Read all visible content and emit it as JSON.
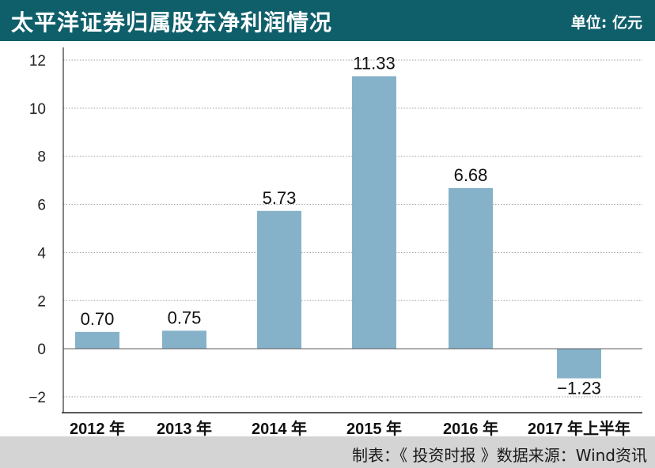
{
  "header": {
    "title": "太平洋证券归属股东净利润情况",
    "unit": "单位: 亿元"
  },
  "footer": {
    "source": "制表：《 投资时报 》数据来源：Wind资讯"
  },
  "colors": {
    "header_bg": "#0f5f6b",
    "bar": "#86b2c9",
    "footer_bg": "#d4d4d4"
  },
  "chart_data": {
    "type": "bar",
    "title": "太平洋证券归属股东净利润情况",
    "xlabel": "",
    "ylabel": "",
    "ylim": [
      -2,
      12
    ],
    "yticks": [
      -2,
      0,
      2,
      4,
      6,
      8,
      10,
      12
    ],
    "grid": true,
    "categories": [
      "2012 年",
      "2013 年",
      "2014 年",
      "2015 年",
      "2016 年",
      "2017 年上半年"
    ],
    "values": [
      0.7,
      0.75,
      5.73,
      11.33,
      6.68,
      -1.23
    ],
    "labels": [
      "0.70",
      "0.75",
      "5.73",
      "11.33",
      "6.68",
      "−1.23"
    ],
    "ytick_labels": [
      "−2",
      "0",
      "2",
      "4",
      "6",
      "8",
      "10",
      "12"
    ]
  }
}
